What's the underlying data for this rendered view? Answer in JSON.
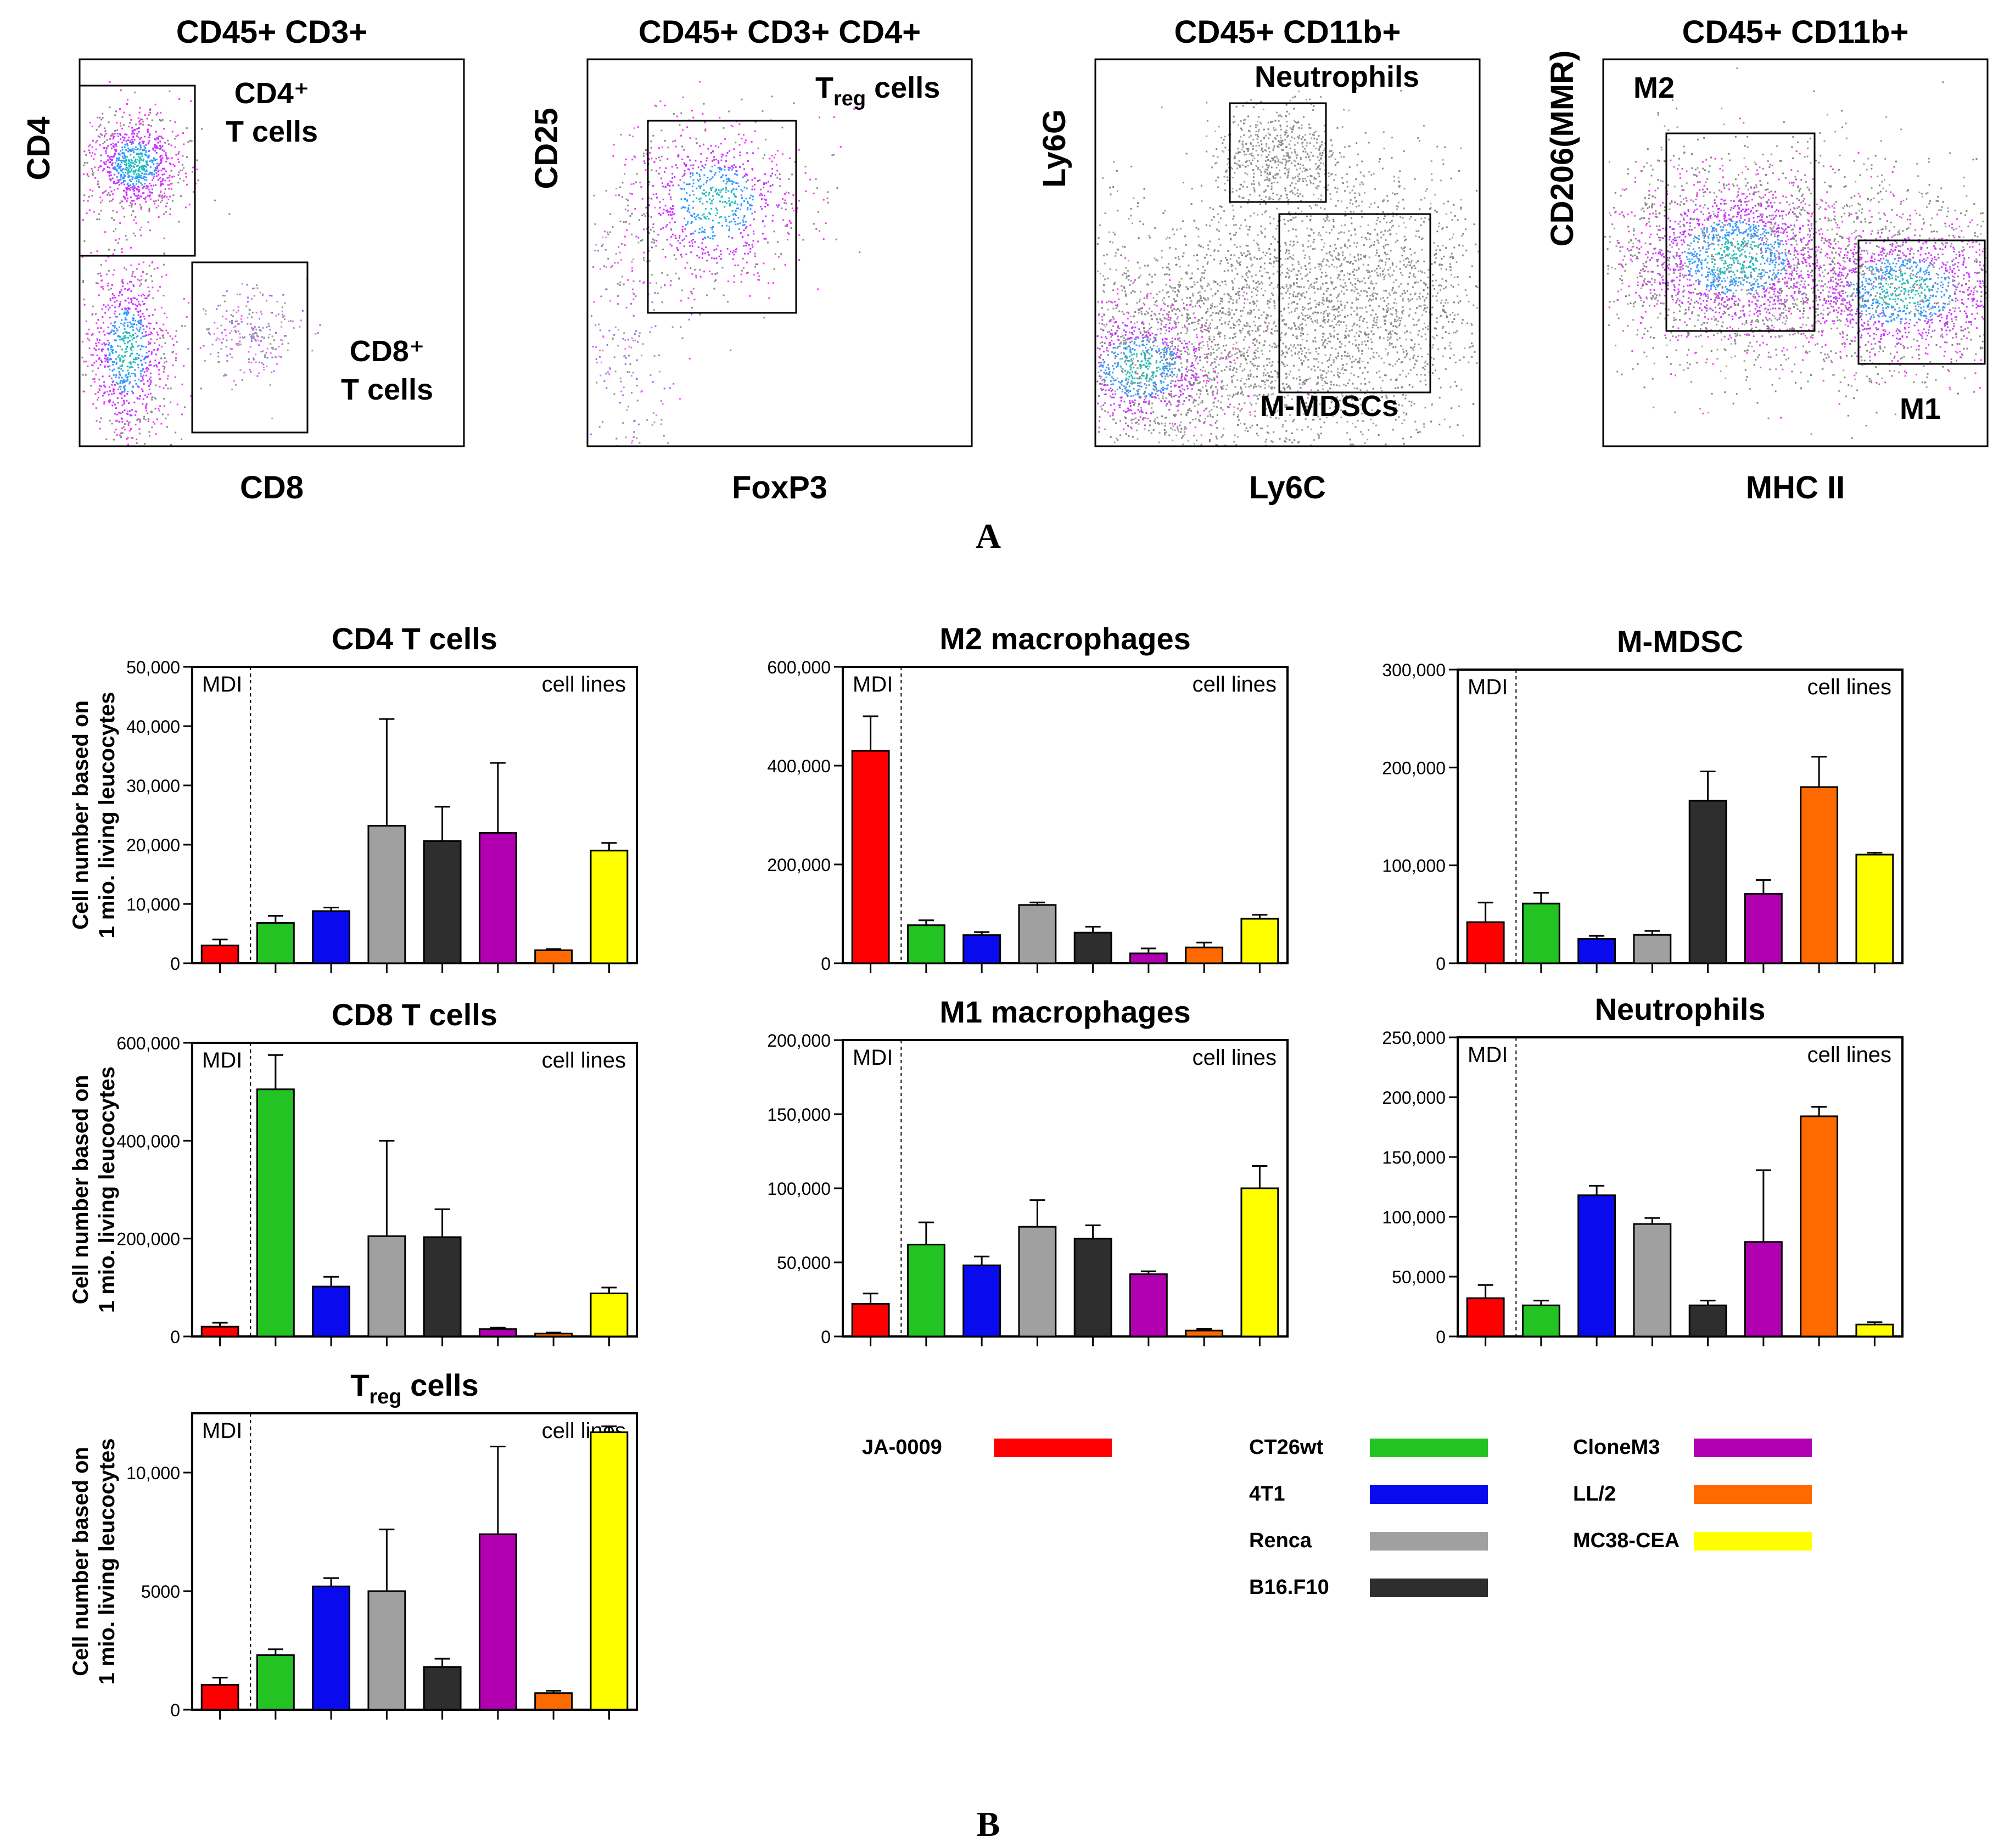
{
  "panel_labels": {
    "a": "A",
    "b": "B"
  },
  "flow_plots": [
    {
      "title": "CD45+ CD3+",
      "xlabel": "CD8",
      "ylabel": "CD4",
      "gates": [
        {
          "label": "CD4⁺\nT cells"
        },
        {
          "label": "CD8⁺\nT cells"
        }
      ]
    },
    {
      "title": "CD45+ CD3+ CD4+",
      "xlabel": "FoxP3",
      "ylabel": "CD25",
      "gates": [
        {
          "label": "T_reg cells"
        }
      ]
    },
    {
      "title": "CD45+ CD11b+",
      "xlabel": "Ly6C",
      "ylabel": "Ly6G",
      "gates": [
        {
          "label": "Neutrophils"
        },
        {
          "label": "M-MDSCs"
        }
      ]
    },
    {
      "title": "CD45+ CD11b+",
      "xlabel": "MHC II",
      "ylabel": "CD206(MMR)",
      "gates": [
        {
          "label": "M2"
        },
        {
          "label": "M1"
        }
      ]
    }
  ],
  "colors": {
    "JA-0009": "#ff0000",
    "CT26wt": "#22c322",
    "4T1": "#0a0aee",
    "Renca": "#a0a0a0",
    "B16.F10": "#2e2e2e",
    "CloneM3": "#b000b0",
    "LL/2": "#ff6a00",
    "MC38-CEA": "#ffff00"
  },
  "legend": [
    "JA-0009",
    "CT26wt",
    "4T1",
    "Renca",
    "B16.F10",
    "CloneM3",
    "LL/2",
    "MC38-CEA"
  ],
  "chart_data": [
    {
      "type": "bar",
      "title": "CD4 T cells",
      "title_sub": "",
      "ylabel": [
        "Cell number based on",
        "1 mio. living leucocytes"
      ],
      "region_left": "MDI",
      "region_right": "cell lines",
      "categories": [
        "JA-0009",
        "CT26wt",
        "4T1",
        "Renca",
        "B16.F10",
        "CloneM3",
        "LL/2",
        "MC38-CEA"
      ],
      "values": [
        3000,
        6800,
        8800,
        23200,
        20600,
        22000,
        2200,
        19000
      ],
      "errors": [
        1000,
        1200,
        600,
        18000,
        5800,
        11800,
        200,
        1300
      ],
      "ylim": [
        0,
        50000
      ],
      "yticks": [
        0,
        10000,
        20000,
        30000,
        40000,
        50000
      ],
      "ytick_labels": [
        "0",
        "10,000",
        "20,000",
        "30,000",
        "40,000",
        "50,000"
      ]
    },
    {
      "type": "bar",
      "title": "M2 macrophages",
      "title_sub": "",
      "ylabel": [],
      "region_left": "MDI",
      "region_right": "cell lines",
      "categories": [
        "JA-0009",
        "CT26wt",
        "4T1",
        "Renca",
        "B16.F10",
        "CloneM3",
        "LL/2",
        "MC38-CEA"
      ],
      "values": [
        430000,
        77000,
        57000,
        118000,
        62000,
        20000,
        32000,
        90000
      ],
      "errors": [
        70000,
        10000,
        6000,
        5000,
        12000,
        10000,
        10000,
        8000
      ],
      "ylim": [
        0,
        600000
      ],
      "yticks": [
        0,
        200000,
        400000,
        600000
      ],
      "ytick_labels": [
        "0",
        "200,000",
        "400,000",
        "600,000"
      ]
    },
    {
      "type": "bar",
      "title": "M-MDSC",
      "title_sub": "",
      "ylabel": [],
      "region_left": "MDI",
      "region_right": "cell lines",
      "categories": [
        "JA-0009",
        "CT26wt",
        "4T1",
        "Renca",
        "B16.F10",
        "CloneM3",
        "LL/2",
        "MC38-CEA"
      ],
      "values": [
        42000,
        61000,
        25000,
        29000,
        166000,
        71000,
        180000,
        111000
      ],
      "errors": [
        20000,
        11000,
        3000,
        4000,
        30000,
        14000,
        31000,
        2000
      ],
      "ylim": [
        0,
        300000
      ],
      "yticks": [
        0,
        100000,
        200000,
        300000
      ],
      "ytick_labels": [
        "0",
        "100,000",
        "200,000",
        "300,000"
      ]
    },
    {
      "type": "bar",
      "title": "CD8 T cells",
      "title_sub": "",
      "ylabel": [
        "Cell number based on",
        "1 mio. living leucocytes"
      ],
      "region_left": "MDI",
      "region_right": "cell lines",
      "categories": [
        "JA-0009",
        "CT26wt",
        "4T1",
        "Renca",
        "B16.F10",
        "CloneM3",
        "LL/2",
        "MC38-CEA"
      ],
      "values": [
        20000,
        505000,
        102000,
        205000,
        203000,
        15000,
        6000,
        88000
      ],
      "errors": [
        8000,
        70000,
        20000,
        195000,
        57000,
        3000,
        2000,
        12000
      ],
      "ylim": [
        0,
        600000
      ],
      "yticks": [
        0,
        200000,
        400000,
        600000
      ],
      "ytick_labels": [
        "0",
        "200,000",
        "400,000",
        "600,000"
      ]
    },
    {
      "type": "bar",
      "title": "M1 macrophages",
      "title_sub": "",
      "ylabel": [],
      "region_left": "MDI",
      "region_right": "cell lines",
      "categories": [
        "JA-0009",
        "CT26wt",
        "4T1",
        "Renca",
        "B16.F10",
        "CloneM3",
        "LL/2",
        "MC38-CEA"
      ],
      "values": [
        22000,
        62000,
        48000,
        74000,
        66000,
        42000,
        4000,
        100000
      ],
      "errors": [
        7000,
        15000,
        6000,
        18000,
        9000,
        2000,
        1000,
        15000
      ],
      "ylim": [
        0,
        200000
      ],
      "yticks": [
        0,
        50000,
        100000,
        150000,
        200000
      ],
      "ytick_labels": [
        "0",
        "50,000",
        "100,000",
        "150,000",
        "200,000"
      ]
    },
    {
      "type": "bar",
      "title": "Neutrophils",
      "title_sub": "",
      "ylabel": [],
      "region_left": "MDI",
      "region_right": "cell lines",
      "categories": [
        "JA-0009",
        "CT26wt",
        "4T1",
        "Renca",
        "B16.F10",
        "CloneM3",
        "LL/2",
        "MC38-CEA"
      ],
      "values": [
        32000,
        26000,
        118000,
        94000,
        26000,
        79000,
        184000,
        10000
      ],
      "errors": [
        11000,
        4000,
        8000,
        5000,
        4000,
        60000,
        8000,
        2000
      ],
      "ylim": [
        0,
        250000
      ],
      "yticks": [
        0,
        50000,
        100000,
        150000,
        200000,
        250000
      ],
      "ytick_labels": [
        "0",
        "50,000",
        "100,000",
        "150,000",
        "200,000",
        "250,000"
      ]
    },
    {
      "type": "bar",
      "title": "T",
      "title_sub": "reg",
      "title_rest": " cells",
      "ylabel": [
        "Cell number based on",
        "1 mio. living leucocytes"
      ],
      "region_left": "MDI",
      "region_right": "cell lines",
      "categories": [
        "JA-0009",
        "CT26wt",
        "4T1",
        "Renca",
        "B16.F10",
        "CloneM3",
        "LL/2",
        "MC38-CEA"
      ],
      "values": [
        1050,
        2300,
        5200,
        5000,
        1800,
        7400,
        700,
        11700
      ],
      "errors": [
        300,
        250,
        350,
        2600,
        350,
        3700,
        100,
        250
      ],
      "ylim": [
        0,
        12500
      ],
      "yticks": [
        0,
        5000,
        10000
      ],
      "ytick_labels": [
        "0",
        "5000",
        "10,000"
      ]
    }
  ]
}
